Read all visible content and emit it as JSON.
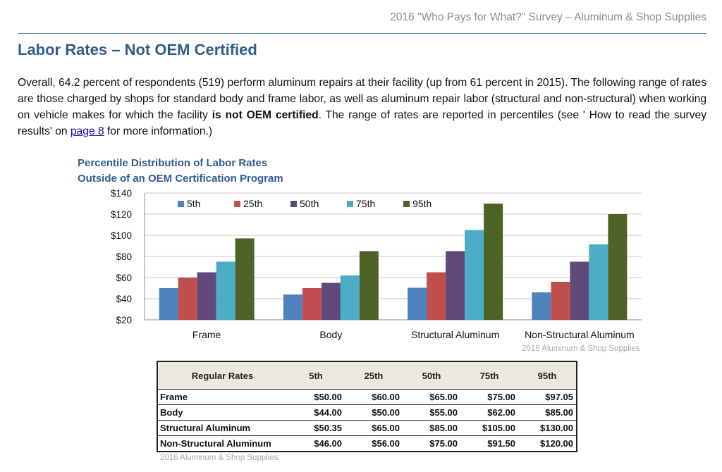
{
  "header": {
    "text": "2016 \"Who Pays for What?\" Survey – Aluminum & Shop Supplies"
  },
  "page_title": "Labor Rates – Not OEM Certified",
  "paragraph": {
    "part1": "Overall, 64.2 percent of respondents (519) perform aluminum repairs at their facility (up from 61 percent in 2015). The following range of rates are those charged by shops for standard body and frame labor, as well as aluminum repair labor (structural and non-structural) when working on vehicle makes for which the facility ",
    "bold": "is not OEM certified",
    "part2": ". The range of rates are reported in percentiles (see ' How to read the survey results' on ",
    "link": "page 8",
    "part3": " for more information.)"
  },
  "chart_data": {
    "type": "bar",
    "title": "Percentile Distribution of Labor Rates",
    "subtitle": "Outside of an OEM Certification Program",
    "categories": [
      "Frame",
      "Body",
      "Structural Aluminum",
      "Non-Structural Aluminum"
    ],
    "series": [
      {
        "name": "5th",
        "color": "#4f81bd",
        "values": [
          50.0,
          44.0,
          50.35,
          46.0
        ]
      },
      {
        "name": "25th",
        "color": "#c0504d",
        "values": [
          60.0,
          50.0,
          65.0,
          56.0
        ]
      },
      {
        "name": "50th",
        "color": "#604a7b",
        "values": [
          65.0,
          55.0,
          85.0,
          75.0
        ]
      },
      {
        "name": "75th",
        "color": "#4bacc6",
        "values": [
          75.0,
          62.0,
          105.0,
          91.5
        ]
      },
      {
        "name": "95th",
        "color": "#4f6228",
        "values": [
          97.05,
          85.0,
          130.0,
          120.0
        ]
      }
    ],
    "ylim": [
      20,
      140
    ],
    "yticks": [
      20,
      40,
      60,
      80,
      100,
      120,
      140
    ],
    "ytick_labels": [
      "$20",
      "$40",
      "$60",
      "$80",
      "$100",
      "$120",
      "$140"
    ],
    "grid": true,
    "legend": "top",
    "xlabel": "",
    "ylabel": ""
  },
  "chart_source": "2016 Aluminum & Shop Supplies",
  "table": {
    "headers": [
      "Regular Rates",
      "5th",
      "25th",
      "50th",
      "75th",
      "95th"
    ],
    "rows": [
      [
        "Frame",
        "$50.00",
        "$60.00",
        "$65.00",
        "$75.00",
        "$97.05"
      ],
      [
        "Body",
        "$44.00",
        "$50.00",
        "$55.00",
        "$62.00",
        "$85.00"
      ],
      [
        "Structural Aluminum",
        "$50.35",
        "$65.00",
        "$85.00",
        "$105.00",
        "$130.00"
      ],
      [
        "Non-Structural Aluminum",
        "$46.00",
        "$56.00",
        "$75.00",
        "$91.50",
        "$120.00"
      ]
    ]
  },
  "table_source": "2016 Aluminum & Shop Supplies"
}
